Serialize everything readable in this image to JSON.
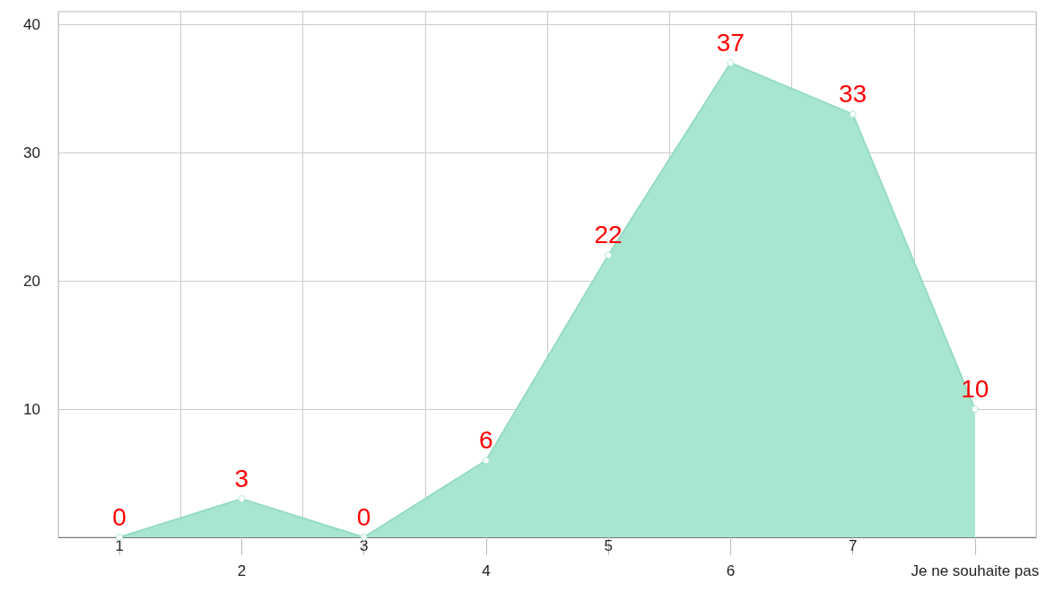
{
  "chart_data": {
    "type": "area",
    "categories": [
      "1",
      "2",
      "3",
      "4",
      "5",
      "6",
      "7",
      "Je ne souhaite pas"
    ],
    "series": [
      {
        "color": "#a8e6d0",
        "values": [
          0,
          3,
          0,
          6,
          22,
          37,
          33,
          10
        ]
      }
    ],
    "ylim": [
      0,
      41
    ],
    "yticks": [
      {
        "value": 0,
        "label": null
      },
      10,
      20,
      30,
      40
    ],
    "grid": true,
    "marker": "circle",
    "data_labels": true
  }
}
